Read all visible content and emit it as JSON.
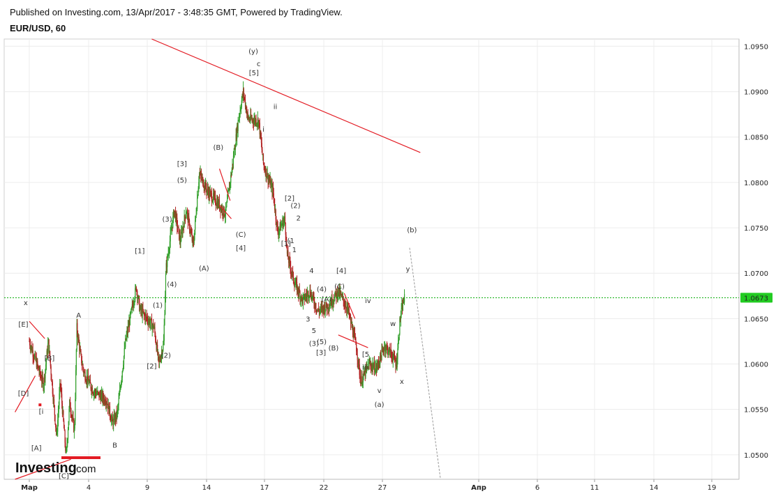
{
  "header": {
    "published": "Published on Investing.com, 13/Apr/2017 - 3:48:35 GMT, Powered by TradingView.",
    "symbol": "EUR/USD, 60"
  },
  "brand": {
    "name": "Investing",
    "suffix": ".com",
    "accent": "#e31b23"
  },
  "colors": {
    "up": "#33a02c",
    "down": "#b22222",
    "trendline": "#e31b23",
    "current_line": "#00aa00",
    "price_badge": "#22cc22"
  },
  "chart_data": {
    "type": "candlestick",
    "x_tick_labels": [
      "Мар",
      "4",
      "9",
      "14",
      "17",
      "22",
      "27",
      "Апр",
      "6",
      "11",
      "14",
      "19"
    ],
    "y_ticks": [
      "1.0500",
      "1.0550",
      "1.0600",
      "1.0650",
      "1.0700",
      "1.0750",
      "1.0800",
      "1.0850",
      "1.0900",
      "1.0950"
    ],
    "ylim": [
      1.0473,
      1.0958
    ],
    "current_price": "1.0673",
    "price_path": [
      [
        0,
        1.0625
      ],
      [
        1.2,
        1.0577
      ],
      [
        1.6,
        1.0625
      ],
      [
        2.3,
        1.052
      ],
      [
        2.6,
        1.058
      ],
      [
        3.1,
        1.0498
      ],
      [
        3.4,
        1.0558
      ],
      [
        3.8,
        1.0525
      ],
      [
        4.0,
        1.064
      ],
      [
        4.3,
        1.061
      ],
      [
        4.6,
        1.059
      ],
      [
        5.4,
        1.057
      ],
      [
        6.5,
        1.056
      ],
      [
        7.0,
        1.0535
      ],
      [
        7.4,
        1.0545
      ],
      [
        8.1,
        1.0625
      ],
      [
        9.0,
        1.0685
      ],
      [
        9.3,
        1.066
      ],
      [
        10.5,
        1.064
      ],
      [
        10.9,
        1.06
      ],
      [
        11.3,
        1.0622
      ],
      [
        11.5,
        1.0705
      ],
      [
        12.2,
        1.077
      ],
      [
        12.7,
        1.0735
      ],
      [
        13.2,
        1.077
      ],
      [
        13.8,
        1.073
      ],
      [
        14.3,
        1.081
      ],
      [
        15.0,
        1.079
      ],
      [
        16.0,
        1.0775
      ],
      [
        16.5,
        1.0765
      ],
      [
        17.0,
        1.081
      ],
      [
        17.6,
        1.087
      ],
      [
        18.0,
        1.09
      ],
      [
        18.4,
        1.087
      ],
      [
        19.3,
        1.0868
      ],
      [
        19.7,
        1.082
      ],
      [
        20.5,
        1.079
      ],
      [
        20.9,
        1.0745
      ],
      [
        21.5,
        1.076
      ],
      [
        21.7,
        1.072
      ],
      [
        22.3,
        1.069
      ],
      [
        23.0,
        1.067
      ],
      [
        23.6,
        1.068
      ],
      [
        24.3,
        1.0658
      ],
      [
        25.2,
        1.0665
      ],
      [
        26.0,
        1.068
      ],
      [
        26.8,
        1.066
      ],
      [
        27.5,
        1.062
      ],
      [
        27.9,
        1.058
      ],
      [
        28.6,
        1.06
      ],
      [
        29.2,
        1.0595
      ],
      [
        29.9,
        1.062
      ],
      [
        30.5,
        1.061
      ],
      [
        30.9,
        1.06
      ],
      [
        31.2,
        1.065
      ],
      [
        31.5,
        1.067
      ],
      [
        31.6,
        1.0673
      ]
    ],
    "trendlines": [
      {
        "from": [
          10.3,
          1.0958
        ],
        "to": [
          32.9,
          1.0833
        ]
      },
      {
        "from": [
          -1.2,
          1.0473
        ],
        "to": [
          3.5,
          1.0495
        ]
      },
      {
        "from": [
          -1.2,
          1.0547
        ],
        "to": [
          0.5,
          1.0587
        ]
      },
      {
        "from": [
          0.0,
          1.0647
        ],
        "to": [
          1.3,
          1.0628
        ]
      },
      {
        "from": [
          16.0,
          1.0775
        ],
        "to": [
          17.0,
          1.076
        ]
      },
      {
        "from": [
          16.0,
          1.0815
        ],
        "to": [
          16.9,
          1.078
        ]
      },
      {
        "from": [
          26.0,
          1.0632
        ],
        "to": [
          28.5,
          1.0618
        ]
      },
      {
        "from": [
          26.5,
          1.0678
        ],
        "to": [
          27.4,
          1.065
        ]
      }
    ],
    "projection": {
      "from": [
        32.0,
        1.0728
      ],
      "to": [
        34.6,
        1.0473
      ]
    },
    "wave_labels": [
      {
        "t": "(y)",
        "x": 18.85,
        "y": 1.0942
      },
      {
        "t": "c",
        "x": 19.3,
        "y": 1.0928
      },
      {
        "t": "[5]",
        "x": 18.9,
        "y": 1.0918
      },
      {
        "t": "ii",
        "x": 20.7,
        "y": 1.0881
      },
      {
        "t": "i",
        "x": 19.7,
        "y": 1.0856
      },
      {
        "t": "(B)",
        "x": 15.9,
        "y": 1.0836
      },
      {
        "t": "[3]",
        "x": 12.85,
        "y": 1.0818
      },
      {
        "t": "(5)",
        "x": 12.85,
        "y": 1.08
      },
      {
        "t": "(3)",
        "x": 11.6,
        "y": 1.0757
      },
      {
        "t": "[1]",
        "x": 9.3,
        "y": 1.0722
      },
      {
        "t": "(1)",
        "x": 10.8,
        "y": 1.0662
      },
      {
        "t": "(4)",
        "x": 12.0,
        "y": 1.0685
      },
      {
        "t": "(A)",
        "x": 14.7,
        "y": 1.0703
      },
      {
        "t": "(C)",
        "x": 17.8,
        "y": 1.074
      },
      {
        "t": "[4]",
        "x": 17.8,
        "y": 1.0725
      },
      {
        "t": "[2]",
        "x": 21.9,
        "y": 1.078
      },
      {
        "t": "(2)",
        "x": 22.4,
        "y": 1.0772
      },
      {
        "t": "2",
        "x": 22.65,
        "y": 1.0758
      },
      {
        "t": "(1",
        "x": 22.0,
        "y": 1.0733
      },
      {
        "t": "1",
        "x": 22.3,
        "y": 1.0723
      },
      {
        "t": "[1]",
        "x": 21.6,
        "y": 1.073
      },
      {
        "t": "4",
        "x": 23.75,
        "y": 1.07
      },
      {
        "t": "(4)",
        "x": 24.6,
        "y": 1.068
      },
      {
        "t": "(A)",
        "x": 25.0,
        "y": 1.0669
      },
      {
        "t": "[4]",
        "x": 26.25,
        "y": 1.07
      },
      {
        "t": "(C)",
        "x": 26.1,
        "y": 1.0683
      },
      {
        "t": "iv",
        "x": 28.5,
        "y": 1.0667
      },
      {
        "t": "3",
        "x": 23.45,
        "y": 1.0647
      },
      {
        "t": "5",
        "x": 23.95,
        "y": 1.0634
      },
      {
        "t": "(3)",
        "x": 23.95,
        "y": 1.062
      },
      {
        "t": "(5)",
        "x": 24.6,
        "y": 1.0622
      },
      {
        "t": "[3]",
        "x": 24.55,
        "y": 1.061
      },
      {
        "t": "(B)",
        "x": 25.6,
        "y": 1.0615
      },
      {
        "t": "[5",
        "x": 28.3,
        "y": 1.0608
      },
      {
        "t": "iii",
        "x": 28.25,
        "y": 1.0594
      },
      {
        "t": "v",
        "x": 29.45,
        "y": 1.0568
      },
      {
        "t": "(a)",
        "x": 29.45,
        "y": 1.0553
      },
      {
        "t": "w",
        "x": 30.6,
        "y": 1.0642
      },
      {
        "t": "x",
        "x": 31.35,
        "y": 1.0578
      },
      {
        "t": "y",
        "x": 31.85,
        "y": 1.0702
      },
      {
        "t": "(b)",
        "x": 32.2,
        "y": 1.0745
      },
      {
        "t": "x",
        "x": -0.3,
        "y": 1.0665
      },
      {
        "t": "[E]",
        "x": -0.5,
        "y": 1.0641
      },
      {
        "t": "[D]",
        "x": -0.5,
        "y": 1.0565
      },
      {
        "t": "[B]",
        "x": 1.7,
        "y": 1.0604
      },
      {
        "t": "[i",
        "x": 1.0,
        "y": 1.0545
      },
      {
        "t": "[A]",
        "x": 0.6,
        "y": 1.0505
      },
      {
        "t": "A",
        "x": 4.15,
        "y": 1.0651
      },
      {
        "t": "B",
        "x": 7.2,
        "y": 1.0508
      },
      {
        "t": "[2]",
        "x": 10.3,
        "y": 1.0595
      },
      {
        "t": "(2)",
        "x": 11.5,
        "y": 1.0607
      },
      {
        "t": "[C]",
        "x": 2.9,
        "y": 1.0474
      }
    ]
  }
}
